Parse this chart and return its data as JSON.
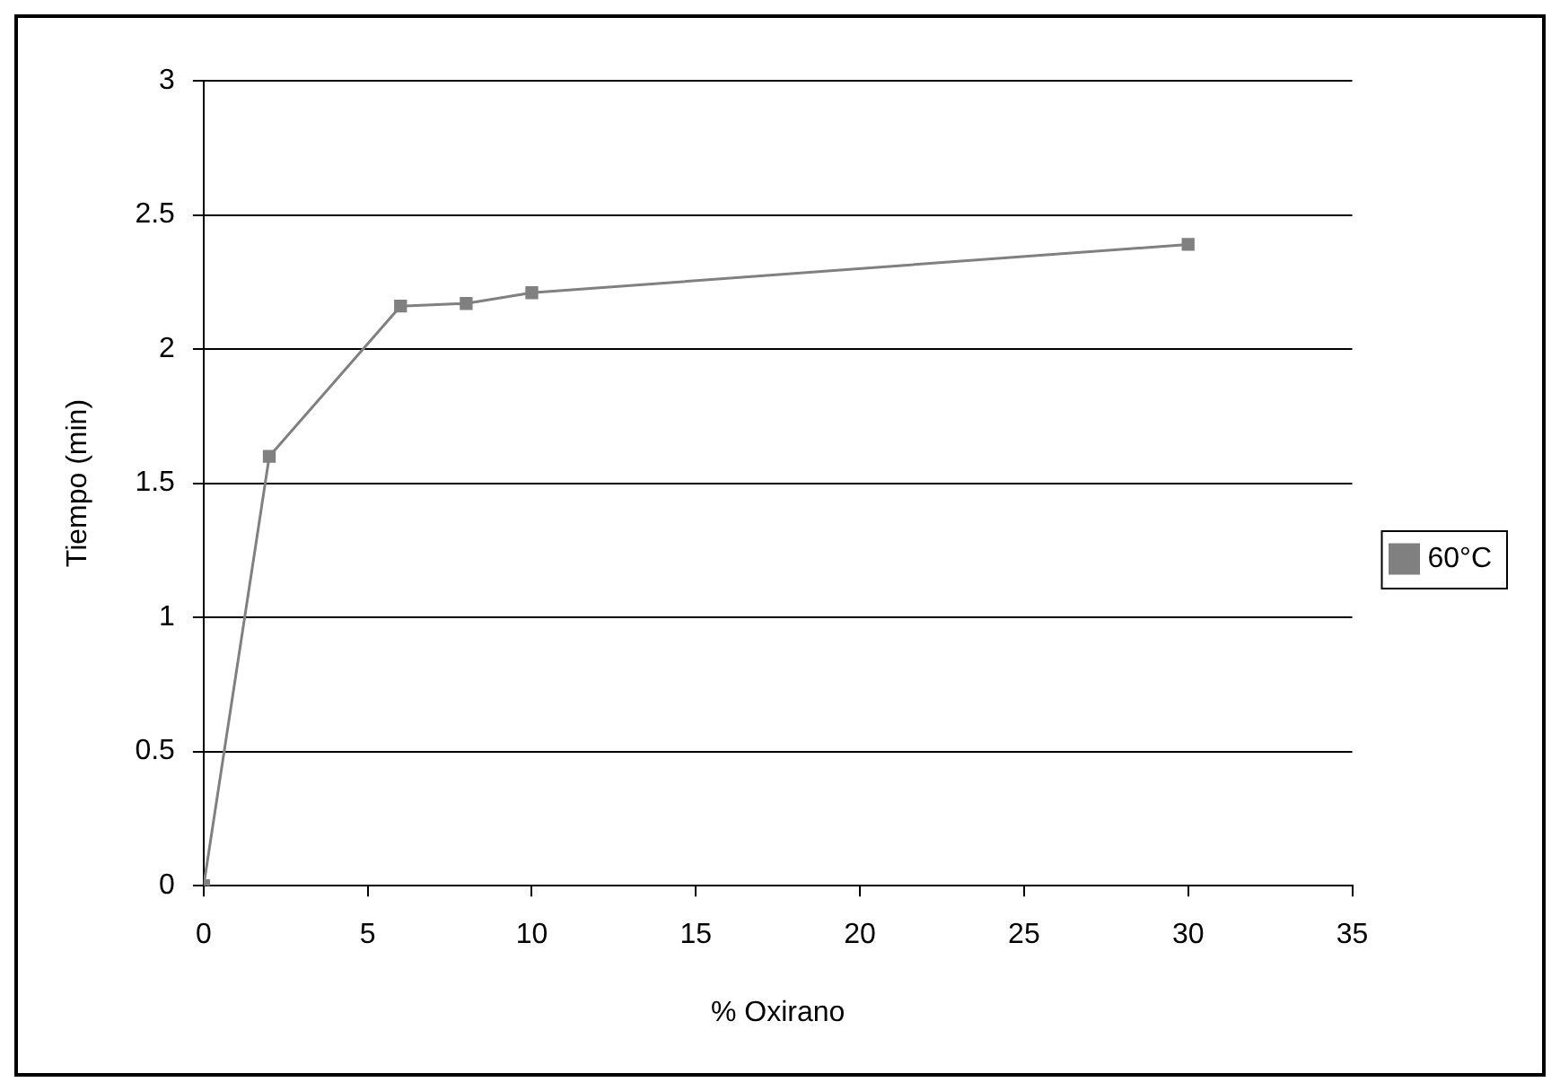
{
  "chart_data": {
    "type": "line",
    "xlabel": "% Oxirano",
    "ylabel": "Tiempo (min)",
    "x": [
      0,
      2,
      6,
      8,
      10,
      30
    ],
    "series": [
      {
        "name": "60°C",
        "color": "#808080",
        "values": [
          0,
          1.6,
          2.16,
          2.17,
          2.21,
          2.39
        ]
      }
    ],
    "xlim": [
      0,
      35
    ],
    "xticks": [
      0,
      5,
      10,
      15,
      20,
      25,
      30,
      35
    ],
    "ylim": [
      0,
      3
    ],
    "yticks": [
      0,
      0.5,
      1,
      1.5,
      2,
      2.5,
      3
    ],
    "grid": "y",
    "legend": "right",
    "marker": "square",
    "line_style": "solid"
  }
}
